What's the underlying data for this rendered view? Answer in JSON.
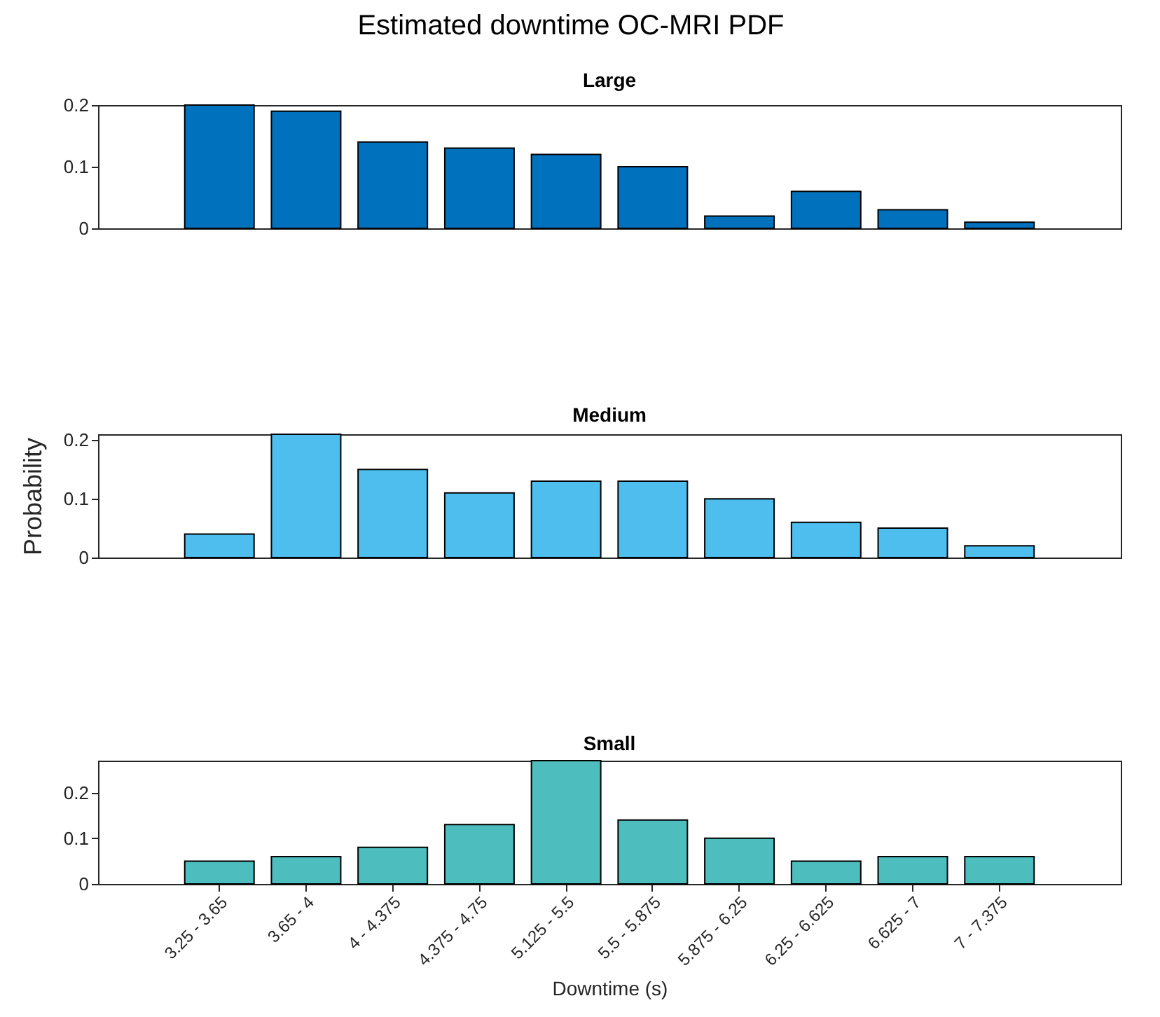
{
  "chart_data": [
    {
      "type": "bar",
      "title": "Estimated downtime OC-MRI PDF",
      "subtitle": "Large",
      "categories": [
        null,
        null,
        null,
        null,
        null,
        null,
        null,
        null,
        null,
        null
      ],
      "values": [
        0.2,
        0.19,
        0.14,
        0.13,
        0.12,
        0.1,
        0.02,
        0.06,
        0.03,
        0.01
      ],
      "color": "#0072bd",
      "ylim": [
        0,
        0.2
      ],
      "yticks": [
        0,
        0.1,
        0.2
      ],
      "tick_labels": "y",
      "grid": false
    },
    {
      "type": "bar",
      "title": "Medium",
      "ylabel": "Probability",
      "categories": [
        null,
        null,
        null,
        null,
        null,
        null,
        null,
        null,
        null,
        null
      ],
      "values": [
        0.04,
        0.21,
        0.15,
        0.11,
        0.13,
        0.13,
        0.1,
        0.06,
        0.05,
        0.02
      ],
      "color": "#4dbeee",
      "ylim": [
        0,
        0.21
      ],
      "yticks": [
        0,
        0.1,
        0.2
      ],
      "tick_labels": "y",
      "grid": false
    },
    {
      "type": "bar",
      "title": "Small",
      "xlabel": "Downtime (s)",
      "categories": [
        "3.25 - 3.65",
        "3.65 - 4",
        "4 - 4.375",
        "4.375 - 4.75",
        "5.125 - 5.5",
        "5.5 - 5.875",
        "5.875 - 6.25",
        "6.25 - 6.625",
        "6.625 - 7",
        "7 - 7.375"
      ],
      "values": [
        0.05,
        0.06,
        0.08,
        0.13,
        0.27,
        0.14,
        0.1,
        0.05,
        0.06,
        0.06
      ],
      "color": "#4dbdbd",
      "ylim": [
        0,
        0.27
      ],
      "yticks": [
        0,
        0.1,
        0.2
      ],
      "grid": false
    }
  ]
}
